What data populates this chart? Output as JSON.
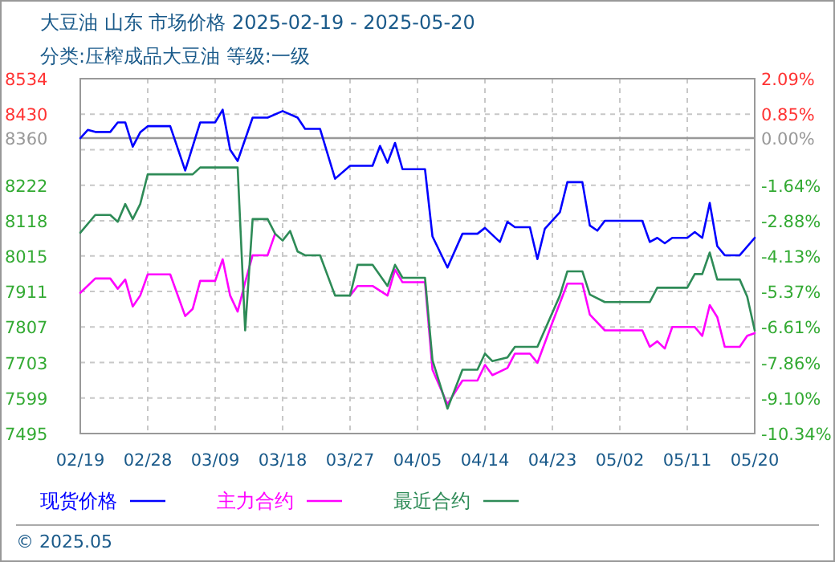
{
  "chart_data": {
    "type": "line",
    "title": "大豆油 山东 市场价格 2025-02-19 - 2025-05-20",
    "subtitle": "分类:压榨成品大豆油 等级:一级",
    "xlim": [
      "2025-02-19",
      "2025-05-20"
    ],
    "xticks": [
      {
        "value": "2025-02-19",
        "label": "02/19"
      },
      {
        "value": "2025-02-28",
        "label": "02/28"
      },
      {
        "value": "2025-03-09",
        "label": "03/09"
      },
      {
        "value": "2025-03-18",
        "label": "03/18"
      },
      {
        "value": "2025-03-27",
        "label": "03/27"
      },
      {
        "value": "2025-04-05",
        "label": "04/05"
      },
      {
        "value": "2025-04-14",
        "label": "04/14"
      },
      {
        "value": "2025-04-23",
        "label": "04/23"
      },
      {
        "value": "2025-05-02",
        "label": "05/02"
      },
      {
        "value": "2025-05-11",
        "label": "05/11"
      },
      {
        "value": "2025-05-20",
        "label": "05/20"
      }
    ],
    "ylim": [
      7495,
      8534
    ],
    "yticks": [
      8534,
      8430,
      8360,
      {
        "value": 8326,
        "label": null
      },
      8222,
      8118,
      8015,
      7911,
      7807,
      7703,
      7599,
      7495
    ],
    "y2lim": [
      -10.34,
      2.09
    ],
    "y2ticks": [
      {
        "value": 2.09,
        "label": "2.09%"
      },
      {
        "value": 0.85,
        "label": "0.85%"
      },
      {
        "value": 0,
        "label": "0.00%"
      },
      {
        "value": -1.64,
        "label": "-1.64%"
      },
      {
        "value": -2.88,
        "label": "-2.88%"
      },
      {
        "value": -4.13,
        "label": "-4.13%"
      },
      {
        "value": -5.37,
        "label": "-5.37%"
      },
      {
        "value": -6.61,
        "label": "-6.61%"
      },
      {
        "value": -7.86,
        "label": "-7.86%"
      },
      {
        "value": -9.1,
        "label": "-9.10%"
      },
      {
        "value": -10.34,
        "label": "-10.34%"
      }
    ],
    "ref_lines": [
      {
        "axis": "y",
        "value": 8360,
        "color": "#999999",
        "line_style": "solid"
      }
    ],
    "grid": true,
    "legend": "bottom",
    "line_style": "solid",
    "series": [
      {
        "name": "现货价格",
        "color": "#0000ff",
        "x": [
          "2025-02-19",
          "2025-02-20",
          "2025-02-21",
          "2025-02-23",
          "2025-02-24",
          "2025-02-25",
          "2025-02-26",
          "2025-02-27",
          "2025-02-28",
          "2025-03-03",
          "2025-03-05",
          "2025-03-07",
          "2025-03-09",
          "2025-03-10",
          "2025-03-11",
          "2025-03-12",
          "2025-03-14",
          "2025-03-16",
          "2025-03-18",
          "2025-03-20",
          "2025-03-21",
          "2025-03-23",
          "2025-03-25",
          "2025-03-27",
          "2025-03-30",
          "2025-03-31",
          "2025-04-01",
          "2025-04-02",
          "2025-04-03",
          "2025-04-06",
          "2025-04-07",
          "2025-04-09",
          "2025-04-11",
          "2025-04-13",
          "2025-04-14",
          "2025-04-16",
          "2025-04-17",
          "2025-04-18",
          "2025-04-20",
          "2025-04-21",
          "2025-04-22",
          "2025-04-24",
          "2025-04-25",
          "2025-04-27",
          "2025-04-28",
          "2025-04-29",
          "2025-04-30",
          "2025-05-05",
          "2025-05-06",
          "2025-05-07",
          "2025-05-08",
          "2025-05-09",
          "2025-05-11",
          "2025-05-12",
          "2025-05-13",
          "2025-05-14",
          "2025-05-15",
          "2025-05-16",
          "2025-05-18",
          "2025-05-20"
        ],
        "values": [
          8360,
          8384,
          8378,
          8378,
          8406,
          8406,
          8335,
          8377,
          8395,
          8395,
          8265,
          8406,
          8406,
          8443,
          8326,
          8293,
          8420,
          8420,
          8439,
          8420,
          8387,
          8387,
          8241,
          8279,
          8279,
          8337,
          8288,
          8346,
          8269,
          8269,
          8072,
          7981,
          8080,
          8080,
          8097,
          8056,
          8115,
          8099,
          8099,
          8006,
          8095,
          8143,
          8231,
          8231,
          8104,
          8089,
          8118,
          8118,
          8056,
          8068,
          8052,
          8068,
          8068,
          8085,
          8068,
          8170,
          8044,
          8017,
          8017,
          8068
        ]
      },
      {
        "name": "主力合约",
        "color": "#ff00ff",
        "x": [
          "2025-02-19",
          "2025-02-21",
          "2025-02-23",
          "2025-02-24",
          "2025-02-25",
          "2025-02-26",
          "2025-02-27",
          "2025-02-28",
          "2025-03-03",
          "2025-03-05",
          "2025-03-06",
          "2025-03-07",
          "2025-03-09",
          "2025-03-10",
          "2025-03-11",
          "2025-03-12",
          "2025-03-13",
          "2025-03-14",
          "2025-03-16",
          "2025-03-17",
          "2025-03-22",
          "2025-03-27",
          "2025-03-28",
          "2025-03-30",
          "2025-04-01",
          "2025-04-02",
          "2025-04-03",
          "2025-04-06",
          "2025-04-07",
          "2025-04-09",
          "2025-04-11",
          "2025-04-13",
          "2025-04-14",
          "2025-04-15",
          "2025-04-17",
          "2025-04-18",
          "2025-04-20",
          "2025-04-21",
          "2025-04-23",
          "2025-04-25",
          "2025-04-27",
          "2025-04-28",
          "2025-04-30",
          "2025-05-05",
          "2025-05-06",
          "2025-05-07",
          "2025-05-08",
          "2025-05-09",
          "2025-05-12",
          "2025-05-13",
          "2025-05-14",
          "2025-05-15",
          "2025-05-16",
          "2025-05-18",
          "2025-05-19",
          "2025-05-20"
        ],
        "values": [
          7907,
          7949,
          7949,
          7919,
          7946,
          7867,
          7899,
          7961,
          7961,
          7839,
          7860,
          7942,
          7942,
          8005,
          7899,
          7852,
          7938,
          8017,
          8017,
          8080,
          null,
          7899,
          7927,
          7927,
          7899,
          7975,
          7938,
          7938,
          7682,
          7581,
          7650,
          7650,
          7696,
          7666,
          7687,
          7729,
          7729,
          7702,
          7820,
          7934,
          7934,
          7843,
          7797,
          7797,
          7749,
          7765,
          7744,
          7807,
          7807,
          7781,
          7871,
          7836,
          7749,
          7749,
          7781,
          7789
        ]
      },
      {
        "name": "最近合约",
        "color": "#2e8b57",
        "x": [
          "2025-02-19",
          "2025-02-21",
          "2025-02-23",
          "2025-02-24",
          "2025-02-25",
          "2025-02-26",
          "2025-02-27",
          "2025-02-28",
          "2025-03-06",
          "2025-03-07",
          "2025-03-12",
          "2025-03-13",
          "2025-03-14",
          "2025-03-16",
          "2025-03-17",
          "2025-03-18",
          "2025-03-19",
          "2025-03-20",
          "2025-03-21",
          "2025-03-23",
          "2025-03-25",
          "2025-03-27",
          "2025-03-28",
          "2025-03-30",
          "2025-04-01",
          "2025-04-02",
          "2025-04-03",
          "2025-04-06",
          "2025-04-07",
          "2025-04-09",
          "2025-04-11",
          "2025-04-13",
          "2025-04-14",
          "2025-04-15",
          "2025-04-17",
          "2025-04-18",
          "2025-04-21",
          "2025-04-24",
          "2025-04-25",
          "2025-04-27",
          "2025-04-28",
          "2025-04-30",
          "2025-05-06",
          "2025-05-07",
          "2025-05-11",
          "2025-05-12",
          "2025-05-13",
          "2025-05-14",
          "2025-05-15",
          "2025-05-18",
          "2025-05-19",
          "2025-05-20"
        ],
        "values": [
          8083,
          8135,
          8135,
          8115,
          8167,
          8123,
          8167,
          8254,
          8254,
          8274,
          8274,
          7797,
          8123,
          8123,
          8080,
          8060,
          8088,
          8028,
          8017,
          8017,
          7899,
          7899,
          7989,
          7989,
          7927,
          7989,
          7951,
          7951,
          7710,
          7568,
          7682,
          7682,
          7729,
          7707,
          7718,
          7749,
          7749,
          7899,
          7970,
          7970,
          7902,
          7880,
          7880,
          7922,
          7922,
          7962,
          7962,
          8025,
          7946,
          7946,
          7896,
          7797
        ]
      }
    ],
    "annotations": [
      "© 2025.05"
    ]
  }
}
